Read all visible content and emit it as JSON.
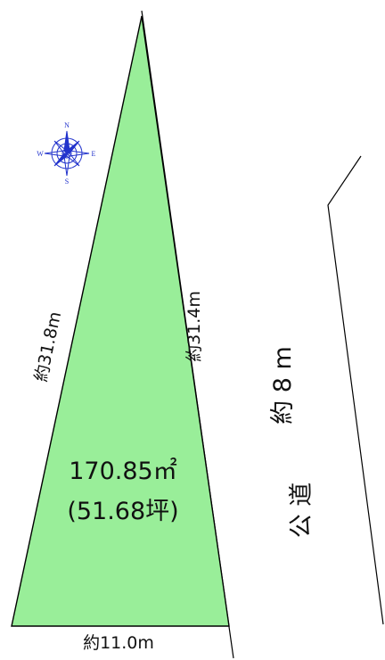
{
  "plot": {
    "area_sqm": "170.85㎡",
    "area_tsubo": "(51.68坪)",
    "fill_color": "#99ee99",
    "outline_color": "#000000"
  },
  "dimensions": {
    "left_side": "約31.8m",
    "right_side": "約31.4m",
    "bottom_side": "約11.0m"
  },
  "road": {
    "label": "公 道",
    "width": "約 8 m"
  },
  "compass": {
    "icon": "compass-rose-icon",
    "color": "#2233cc",
    "north": "N",
    "south": "S",
    "east": "E",
    "west": "W"
  }
}
